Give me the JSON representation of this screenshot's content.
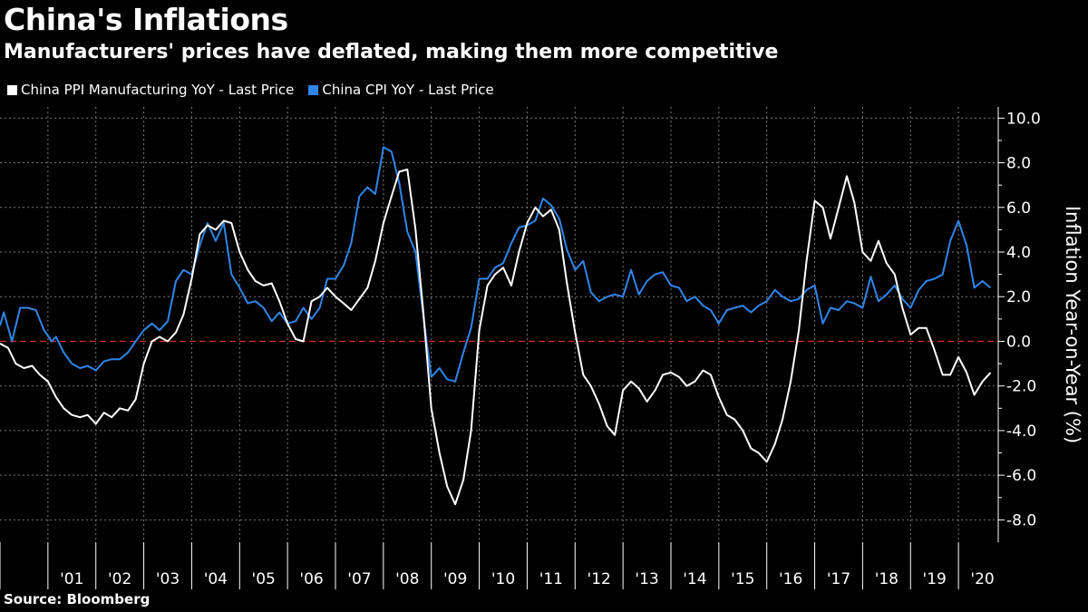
{
  "title": "China's Inflations",
  "subtitle": "Manufacturers' prices have deflated, making them more competitive",
  "source": "Source: Bloomberg",
  "colors": {
    "ppi": "#ffffff",
    "cpi": "#2f86e8",
    "zero_line": "#e03030",
    "grid": "#7a7a7a",
    "background": "#000000"
  },
  "chart_data": {
    "type": "line",
    "ylabel": "Inflation Year-on-Year (%)",
    "ylim": [
      -9.0,
      10.5
    ],
    "yticks": [
      10.0,
      8.0,
      6.0,
      4.0,
      2.0,
      0.0,
      -2.0,
      -4.0,
      -6.0,
      -8.0
    ],
    "ytick_labels": [
      "10.0",
      "8.0",
      "6.0",
      "4.0",
      "2.0",
      "0.0",
      "-2.0",
      "-4.0",
      "-6.0",
      "-8.0"
    ],
    "xlim": [
      2000.0,
      2020.83
    ],
    "x_tick_labels": [
      "'01",
      "'02",
      "'03",
      "'04",
      "'05",
      "'06",
      "'07",
      "'08",
      "'09",
      "'10",
      "'11",
      "'12",
      "'13",
      "'14",
      "'15",
      "'16",
      "'17",
      "'18",
      "'19",
      "'20"
    ],
    "x_tick_years": [
      2001,
      2002,
      2003,
      2004,
      2005,
      2006,
      2007,
      2008,
      2009,
      2010,
      2011,
      2012,
      2013,
      2014,
      2015,
      2016,
      2017,
      2018,
      2019,
      2020
    ],
    "grid": true,
    "legend_position": "top-left",
    "reference_line": 0.0,
    "y_axis_side": "right",
    "series": [
      {
        "name": "China PPI Manufacturing YoY - Last Price",
        "color": "#ffffff",
        "points": [
          [
            2000.0,
            -0.1
          ],
          [
            2000.17,
            -0.3
          ],
          [
            2000.33,
            -1.0
          ],
          [
            2000.5,
            -1.2
          ],
          [
            2000.67,
            -1.1
          ],
          [
            2000.83,
            -1.5
          ],
          [
            2001.0,
            -1.8
          ],
          [
            2001.17,
            -2.5
          ],
          [
            2001.33,
            -3.0
          ],
          [
            2001.5,
            -3.3
          ],
          [
            2001.67,
            -3.4
          ],
          [
            2001.83,
            -3.3
          ],
          [
            2002.0,
            -3.7
          ],
          [
            2002.17,
            -3.2
          ],
          [
            2002.33,
            -3.4
          ],
          [
            2002.5,
            -3.0
          ],
          [
            2002.67,
            -3.1
          ],
          [
            2002.83,
            -2.6
          ],
          [
            2003.0,
            -1.0
          ],
          [
            2003.17,
            0.0
          ],
          [
            2003.33,
            0.2
          ],
          [
            2003.5,
            0.0
          ],
          [
            2003.67,
            0.4
          ],
          [
            2003.83,
            1.2
          ],
          [
            2004.0,
            2.8
          ],
          [
            2004.17,
            4.8
          ],
          [
            2004.33,
            5.2
          ],
          [
            2004.5,
            5.0
          ],
          [
            2004.67,
            5.4
          ],
          [
            2004.83,
            5.3
          ],
          [
            2005.0,
            4.0
          ],
          [
            2005.17,
            3.2
          ],
          [
            2005.33,
            2.7
          ],
          [
            2005.5,
            2.5
          ],
          [
            2005.67,
            2.6
          ],
          [
            2005.83,
            1.8
          ],
          [
            2006.0,
            0.8
          ],
          [
            2006.17,
            0.1
          ],
          [
            2006.33,
            0.0
          ],
          [
            2006.5,
            1.8
          ],
          [
            2006.67,
            2.0
          ],
          [
            2006.83,
            2.4
          ],
          [
            2007.0,
            2.0
          ],
          [
            2007.17,
            1.7
          ],
          [
            2007.33,
            1.4
          ],
          [
            2007.5,
            1.9
          ],
          [
            2007.67,
            2.4
          ],
          [
            2007.83,
            3.6
          ],
          [
            2008.0,
            5.3
          ],
          [
            2008.17,
            6.5
          ],
          [
            2008.33,
            7.6
          ],
          [
            2008.5,
            7.7
          ],
          [
            2008.67,
            5.0
          ],
          [
            2008.83,
            1.4
          ],
          [
            2009.0,
            -3.0
          ],
          [
            2009.17,
            -5.0
          ],
          [
            2009.33,
            -6.5
          ],
          [
            2009.5,
            -7.3
          ],
          [
            2009.67,
            -6.2
          ],
          [
            2009.83,
            -4.0
          ],
          [
            2010.0,
            0.5
          ],
          [
            2010.17,
            2.5
          ],
          [
            2010.33,
            3.0
          ],
          [
            2010.5,
            3.3
          ],
          [
            2010.67,
            2.5
          ],
          [
            2010.83,
            4.0
          ],
          [
            2011.0,
            5.3
          ],
          [
            2011.17,
            6.0
          ],
          [
            2011.33,
            5.6
          ],
          [
            2011.5,
            5.9
          ],
          [
            2011.67,
            5.0
          ],
          [
            2011.83,
            2.6
          ],
          [
            2012.0,
            0.4
          ],
          [
            2012.17,
            -1.5
          ],
          [
            2012.33,
            -2.0
          ],
          [
            2012.5,
            -2.8
          ],
          [
            2012.67,
            -3.8
          ],
          [
            2012.83,
            -4.2
          ],
          [
            2013.0,
            -2.2
          ],
          [
            2013.17,
            -1.8
          ],
          [
            2013.33,
            -2.1
          ],
          [
            2013.5,
            -2.7
          ],
          [
            2013.67,
            -2.2
          ],
          [
            2013.83,
            -1.5
          ],
          [
            2014.0,
            -1.4
          ],
          [
            2014.17,
            -1.6
          ],
          [
            2014.33,
            -2.0
          ],
          [
            2014.5,
            -1.8
          ],
          [
            2014.67,
            -1.3
          ],
          [
            2014.83,
            -1.5
          ],
          [
            2015.0,
            -2.5
          ],
          [
            2015.17,
            -3.3
          ],
          [
            2015.33,
            -3.5
          ],
          [
            2015.5,
            -4.0
          ],
          [
            2015.67,
            -4.8
          ],
          [
            2015.83,
            -5.0
          ],
          [
            2016.0,
            -5.4
          ],
          [
            2016.17,
            -4.6
          ],
          [
            2016.33,
            -3.5
          ],
          [
            2016.5,
            -1.8
          ],
          [
            2016.67,
            0.5
          ],
          [
            2016.83,
            3.6
          ],
          [
            2017.0,
            6.3
          ],
          [
            2017.17,
            6.0
          ],
          [
            2017.33,
            4.6
          ],
          [
            2017.5,
            6.0
          ],
          [
            2017.67,
            7.4
          ],
          [
            2017.83,
            6.2
          ],
          [
            2018.0,
            4.0
          ],
          [
            2018.17,
            3.6
          ],
          [
            2018.33,
            4.5
          ],
          [
            2018.5,
            3.5
          ],
          [
            2018.67,
            3.0
          ],
          [
            2018.83,
            1.5
          ],
          [
            2019.0,
            0.3
          ],
          [
            2019.17,
            0.6
          ],
          [
            2019.33,
            0.6
          ],
          [
            2019.5,
            -0.4
          ],
          [
            2019.67,
            -1.5
          ],
          [
            2019.83,
            -1.5
          ],
          [
            2020.0,
            -0.7
          ],
          [
            2020.17,
            -1.4
          ],
          [
            2020.33,
            -2.4
          ],
          [
            2020.5,
            -1.8
          ],
          [
            2020.67,
            -1.4
          ]
        ]
      },
      {
        "name": "China CPI YoY - Last Price",
        "color": "#2f86e8",
        "points": [
          [
            2000.0,
            0.7
          ],
          [
            2000.08,
            1.3
          ],
          [
            2000.25,
            0.0
          ],
          [
            2000.42,
            1.5
          ],
          [
            2000.58,
            1.5
          ],
          [
            2000.75,
            1.4
          ],
          [
            2000.92,
            0.5
          ],
          [
            2001.08,
            0.0
          ],
          [
            2001.17,
            0.2
          ],
          [
            2001.33,
            -0.5
          ],
          [
            2001.5,
            -1.0
          ],
          [
            2001.67,
            -1.2
          ],
          [
            2001.83,
            -1.1
          ],
          [
            2002.0,
            -1.3
          ],
          [
            2002.17,
            -0.9
          ],
          [
            2002.33,
            -0.8
          ],
          [
            2002.5,
            -0.8
          ],
          [
            2002.67,
            -0.5
          ],
          [
            2002.83,
            0.0
          ],
          [
            2003.0,
            0.5
          ],
          [
            2003.17,
            0.8
          ],
          [
            2003.33,
            0.5
          ],
          [
            2003.5,
            0.9
          ],
          [
            2003.67,
            2.7
          ],
          [
            2003.83,
            3.2
          ],
          [
            2004.0,
            3.0
          ],
          [
            2004.17,
            4.3
          ],
          [
            2004.33,
            5.3
          ],
          [
            2004.5,
            4.5
          ],
          [
            2004.67,
            5.3
          ],
          [
            2004.83,
            3.0
          ],
          [
            2005.0,
            2.4
          ],
          [
            2005.17,
            1.7
          ],
          [
            2005.33,
            1.8
          ],
          [
            2005.5,
            1.5
          ],
          [
            2005.67,
            0.9
          ],
          [
            2005.83,
            1.3
          ],
          [
            2006.0,
            0.8
          ],
          [
            2006.17,
            0.9
          ],
          [
            2006.33,
            1.5
          ],
          [
            2006.5,
            1.0
          ],
          [
            2006.67,
            1.5
          ],
          [
            2006.83,
            2.8
          ],
          [
            2007.0,
            2.8
          ],
          [
            2007.17,
            3.4
          ],
          [
            2007.33,
            4.4
          ],
          [
            2007.5,
            6.5
          ],
          [
            2007.67,
            6.9
          ],
          [
            2007.83,
            6.6
          ],
          [
            2008.0,
            8.7
          ],
          [
            2008.17,
            8.5
          ],
          [
            2008.33,
            7.1
          ],
          [
            2008.5,
            4.9
          ],
          [
            2008.67,
            4.0
          ],
          [
            2008.83,
            1.2
          ],
          [
            2009.0,
            -1.6
          ],
          [
            2009.17,
            -1.2
          ],
          [
            2009.33,
            -1.7
          ],
          [
            2009.5,
            -1.8
          ],
          [
            2009.67,
            -0.5
          ],
          [
            2009.83,
            0.6
          ],
          [
            2010.0,
            2.8
          ],
          [
            2010.17,
            2.8
          ],
          [
            2010.33,
            3.3
          ],
          [
            2010.5,
            3.5
          ],
          [
            2010.67,
            4.4
          ],
          [
            2010.83,
            5.1
          ],
          [
            2011.0,
            5.2
          ],
          [
            2011.17,
            5.4
          ],
          [
            2011.33,
            6.4
          ],
          [
            2011.5,
            6.1
          ],
          [
            2011.67,
            5.5
          ],
          [
            2011.83,
            4.1
          ],
          [
            2012.0,
            3.2
          ],
          [
            2012.17,
            3.6
          ],
          [
            2012.33,
            2.2
          ],
          [
            2012.5,
            1.8
          ],
          [
            2012.67,
            2.0
          ],
          [
            2012.83,
            2.1
          ],
          [
            2013.0,
            2.0
          ],
          [
            2013.17,
            3.2
          ],
          [
            2013.33,
            2.1
          ],
          [
            2013.5,
            2.7
          ],
          [
            2013.67,
            3.0
          ],
          [
            2013.83,
            3.1
          ],
          [
            2014.0,
            2.5
          ],
          [
            2014.17,
            2.4
          ],
          [
            2014.33,
            1.8
          ],
          [
            2014.5,
            2.0
          ],
          [
            2014.67,
            1.6
          ],
          [
            2014.83,
            1.4
          ],
          [
            2015.0,
            0.8
          ],
          [
            2015.17,
            1.4
          ],
          [
            2015.33,
            1.5
          ],
          [
            2015.5,
            1.6
          ],
          [
            2015.67,
            1.3
          ],
          [
            2015.83,
            1.6
          ],
          [
            2016.0,
            1.8
          ],
          [
            2016.17,
            2.3
          ],
          [
            2016.33,
            2.0
          ],
          [
            2016.5,
            1.8
          ],
          [
            2016.67,
            1.9
          ],
          [
            2016.83,
            2.3
          ],
          [
            2017.0,
            2.5
          ],
          [
            2017.17,
            0.8
          ],
          [
            2017.33,
            1.5
          ],
          [
            2017.5,
            1.4
          ],
          [
            2017.67,
            1.8
          ],
          [
            2017.83,
            1.7
          ],
          [
            2018.0,
            1.5
          ],
          [
            2018.17,
            2.9
          ],
          [
            2018.33,
            1.8
          ],
          [
            2018.5,
            2.1
          ],
          [
            2018.67,
            2.5
          ],
          [
            2018.83,
            1.9
          ],
          [
            2019.0,
            1.5
          ],
          [
            2019.17,
            2.3
          ],
          [
            2019.33,
            2.7
          ],
          [
            2019.5,
            2.8
          ],
          [
            2019.67,
            3.0
          ],
          [
            2019.83,
            4.5
          ],
          [
            2020.0,
            5.4
          ],
          [
            2020.17,
            4.3
          ],
          [
            2020.33,
            2.4
          ],
          [
            2020.5,
            2.7
          ],
          [
            2020.67,
            2.4
          ]
        ]
      }
    ]
  }
}
